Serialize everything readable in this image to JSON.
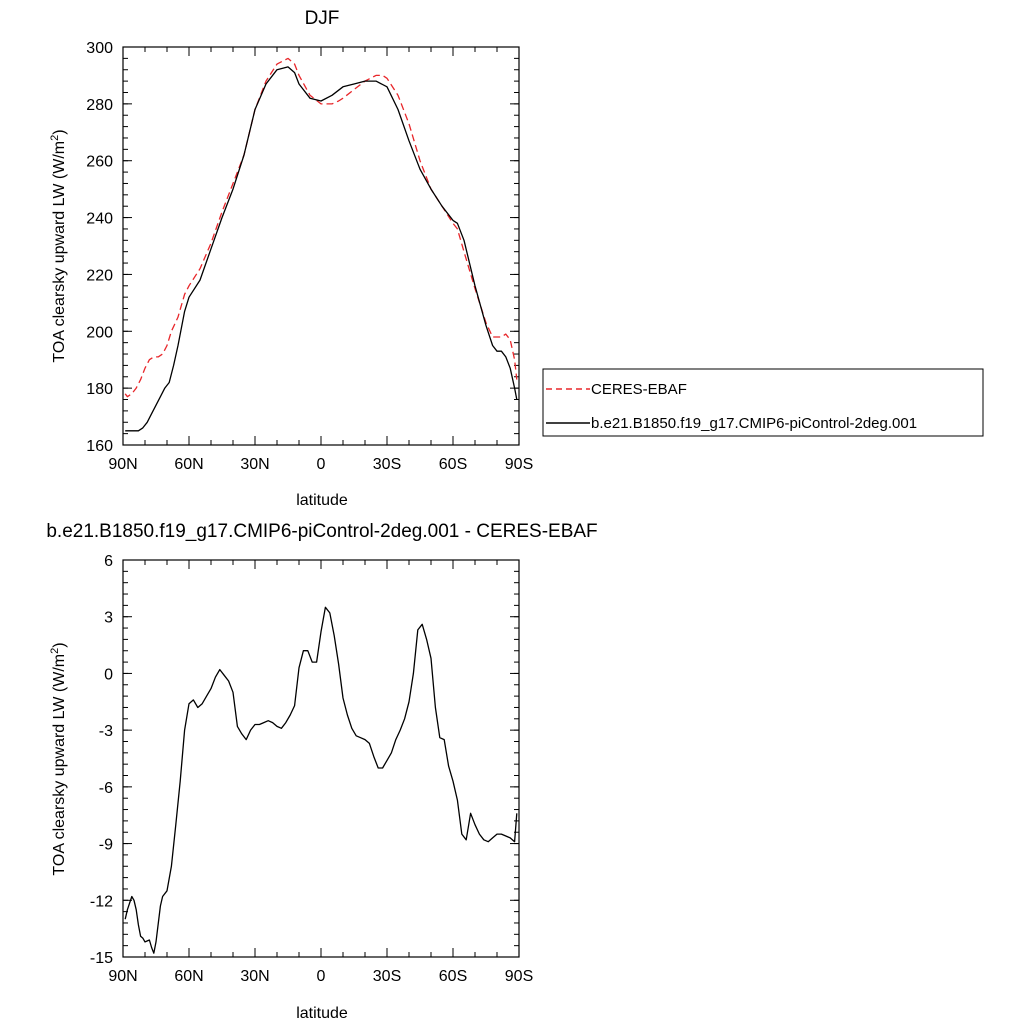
{
  "chart_data": [
    {
      "type": "line",
      "title": "DJF",
      "xlabel": "latitude",
      "ylabel": "TOA clearsky upward LW (W/m",
      "ylabel_superscript": "2",
      "ylabel_suffix": ")",
      "xlim": [
        90,
        -90
      ],
      "ylim": [
        160,
        300
      ],
      "x_ticks": [
        90,
        60,
        30,
        0,
        -30,
        -60,
        -90
      ],
      "x_tick_labels": [
        "90N",
        "60N",
        "30N",
        "0",
        "30S",
        "60S",
        "90S"
      ],
      "y_ticks": [
        160,
        180,
        200,
        220,
        240,
        260,
        280,
        300
      ],
      "y_tick_labels": [
        "160",
        "180",
        "200",
        "220",
        "240",
        "260",
        "280",
        "300"
      ],
      "grid": false,
      "legend_position": "right",
      "series": [
        {
          "name": "CERES-EBAF",
          "color": "#e8262a",
          "dash": "dashed",
          "x": [
            89,
            88,
            86,
            84,
            82,
            80,
            78,
            76,
            74,
            72,
            70,
            68,
            65,
            62,
            60,
            55,
            50,
            45,
            40,
            35,
            30,
            25,
            20,
            15,
            12,
            10,
            5,
            0,
            -5,
            -8,
            -10,
            -15,
            -20,
            -25,
            -28,
            -30,
            -35,
            -40,
            -45,
            -50,
            -55,
            -60,
            -62,
            -65,
            -70,
            -75,
            -78,
            -80,
            -82,
            -84,
            -86,
            -88,
            -89
          ],
          "y": [
            178,
            177,
            178,
            180,
            183,
            187,
            190,
            191,
            191,
            192,
            195,
            200,
            205,
            213,
            216,
            222,
            231,
            242,
            252,
            262,
            278,
            288,
            294,
            296,
            294,
            290,
            283,
            280,
            280,
            281,
            282,
            285,
            288,
            290,
            290,
            289,
            283,
            273,
            260,
            250,
            244,
            238,
            236,
            228,
            215,
            203,
            198,
            198,
            198,
            199,
            197,
            190,
            183
          ]
        },
        {
          "name": "b.e21.B1850.f19_g17.CMIP6-piControl-2deg.001",
          "color": "#000000",
          "dash": "solid",
          "x": [
            89,
            87,
            85,
            83,
            81,
            79,
            77,
            75,
            73,
            71,
            69,
            67,
            65,
            62,
            60,
            55,
            50,
            45,
            40,
            35,
            30,
            25,
            20,
            15,
            12,
            10,
            5,
            0,
            -5,
            -10,
            -15,
            -20,
            -25,
            -30,
            -35,
            -40,
            -45,
            -50,
            -55,
            -60,
            -62,
            -65,
            -70,
            -75,
            -78,
            -80,
            -82,
            -84,
            -86,
            -88,
            -89
          ],
          "y": [
            165,
            165,
            165,
            165,
            166,
            168,
            171,
            174,
            177,
            180,
            182,
            188,
            195,
            207,
            212,
            218,
            229,
            240,
            250,
            262,
            278,
            287,
            292,
            293,
            291,
            287,
            282,
            281,
            283,
            286,
            287,
            288,
            288,
            286,
            278,
            267,
            257,
            250,
            244,
            239,
            238,
            232,
            216,
            202,
            195,
            193,
            193,
            191,
            187,
            180,
            176
          ]
        }
      ]
    },
    {
      "type": "line",
      "title": "b.e21.B1850.f19_g17.CMIP6-piControl-2deg.001 - CERES-EBAF",
      "xlabel": "latitude",
      "ylabel": "TOA clearsky upward LW (W/m",
      "ylabel_superscript": "2",
      "ylabel_suffix": ")",
      "xlim": [
        90,
        -90
      ],
      "ylim": [
        -15,
        6
      ],
      "x_ticks": [
        90,
        60,
        30,
        0,
        -30,
        -60,
        -90
      ],
      "x_tick_labels": [
        "90N",
        "60N",
        "30N",
        "0",
        "30S",
        "60S",
        "90S"
      ],
      "y_ticks": [
        -15,
        -12,
        -9,
        -6,
        -3,
        0,
        3,
        6
      ],
      "y_tick_labels": [
        "-15",
        "-12",
        "-9",
        "-6",
        "-3",
        "0",
        "3",
        "6"
      ],
      "grid": false,
      "series": [
        {
          "color": "#000000",
          "dash": "solid",
          "x": [
            89,
            88,
            86,
            85,
            84,
            83,
            82,
            81,
            80,
            78,
            77,
            76,
            75,
            73,
            72,
            70,
            68,
            66,
            64,
            62,
            60,
            58,
            56,
            54,
            52,
            50,
            48,
            46,
            44,
            42,
            40,
            38,
            36,
            34,
            32,
            30,
            28,
            26,
            24,
            22,
            20,
            18,
            16,
            14,
            12,
            10,
            8,
            6,
            4,
            2,
            0,
            -2,
            -4,
            -6,
            -8,
            -10,
            -12,
            -14,
            -16,
            -18,
            -20,
            -22,
            -24,
            -26,
            -28,
            -30,
            -32,
            -34,
            -36,
            -38,
            -40,
            -42,
            -44,
            -46,
            -48,
            -50,
            -52,
            -54,
            -56,
            -58,
            -60,
            -62,
            -64,
            -66,
            -68,
            -70,
            -72,
            -74,
            -76,
            -78,
            -80,
            -82,
            -84,
            -86,
            -88,
            -89
          ],
          "y": [
            -13,
            -12.5,
            -11.8,
            -12,
            -12.5,
            -13.3,
            -13.9,
            -14,
            -14.2,
            -14.1,
            -14.5,
            -14.8,
            -14.2,
            -12.3,
            -11.8,
            -11.5,
            -10.2,
            -8,
            -5.7,
            -3,
            -1.6,
            -1.4,
            -1.8,
            -1.6,
            -1.2,
            -0.8,
            -0.2,
            0.2,
            -0.1,
            -0.4,
            -1,
            -2.8,
            -3.2,
            -3.5,
            -3,
            -2.7,
            -2.7,
            -2.6,
            -2.5,
            -2.6,
            -2.8,
            -2.9,
            -2.6,
            -2.2,
            -1.7,
            0.3,
            1.2,
            1.2,
            0.6,
            0.6,
            2.2,
            3.5,
            3.2,
            2,
            0.5,
            -1.3,
            -2.2,
            -2.9,
            -3.3,
            -3.4,
            -3.5,
            -3.7,
            -4.4,
            -5,
            -5,
            -4.6,
            -4.2,
            -3.5,
            -3,
            -2.4,
            -1.5,
            0,
            2.3,
            2.6,
            1.8,
            0.8,
            -1.8,
            -3.4,
            -3.5,
            -4.9,
            -5.7,
            -6.7,
            -8.5,
            -8.8,
            -7.4,
            -8,
            -8.5,
            -8.8,
            -8.9,
            -8.7,
            -8.5,
            -8.5,
            -8.6,
            -8.7,
            -8.9,
            -7.4
          ]
        }
      ]
    }
  ]
}
